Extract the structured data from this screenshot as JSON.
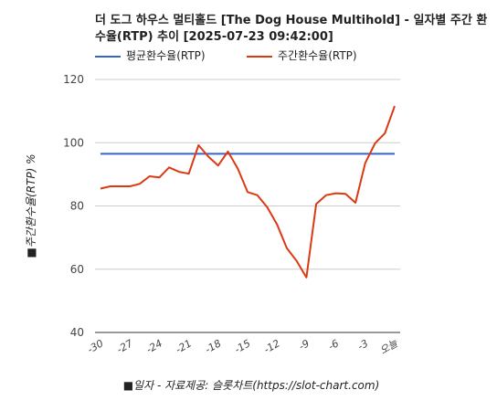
{
  "chart_data": {
    "type": "line",
    "title": "더 도그 하우스 멀티홀드 [The Dog House Multihold] - 일자별 주간 환수율(RTP) 추이 [2025-07-23 09:42:00]",
    "xlabel": "■일자 - 자료제공: 슬롯차트(https://slot-chart.com)",
    "ylabel": "■주간환수율(RTP) %",
    "ylim": [
      40,
      120
    ],
    "yticks": [
      "40",
      "60",
      "80",
      "100",
      "120"
    ],
    "xtick_labels": [
      "-30",
      "-27",
      "-24",
      "-21",
      "-18",
      "-15",
      "-12",
      "-9",
      "-6",
      "-3",
      "오늘"
    ],
    "x": [
      -30,
      -29,
      -28,
      -27,
      -26,
      -25,
      -24,
      -23,
      -22,
      -21,
      -20,
      -19,
      -18,
      -17,
      -16,
      -15,
      -14,
      -13,
      -12,
      -11,
      -10,
      -9,
      -8,
      -7,
      -6,
      -5,
      -4,
      -3,
      -2,
      -1,
      0
    ],
    "legend_position": "top-left",
    "grid": true,
    "series": [
      {
        "name": "평균환수율(RTP)",
        "color": "#3366cc",
        "values": [
          96.5,
          96.5,
          96.5,
          96.5,
          96.5,
          96.5,
          96.5,
          96.5,
          96.5,
          96.5,
          96.5,
          96.5,
          96.5,
          96.5,
          96.5,
          96.5,
          96.5,
          96.5,
          96.5,
          96.5,
          96.5,
          96.5,
          96.5,
          96.5,
          96.5,
          96.5,
          96.5,
          96.5,
          96.5,
          96.5,
          96.5
        ]
      },
      {
        "name": "주간환수율(RTP)",
        "color": "#dc3912",
        "values": [
          85.5,
          86.2,
          86.2,
          86.2,
          87.0,
          89.4,
          89.0,
          92.2,
          90.8,
          90.2,
          99.2,
          95.6,
          92.8,
          97.2,
          91.8,
          84.4,
          83.4,
          79.6,
          74.2,
          66.7,
          62.6,
          57.4,
          80.6,
          83.4,
          84.0,
          83.8,
          81.0,
          93.6,
          99.8,
          103.0,
          111.6
        ]
      }
    ]
  }
}
